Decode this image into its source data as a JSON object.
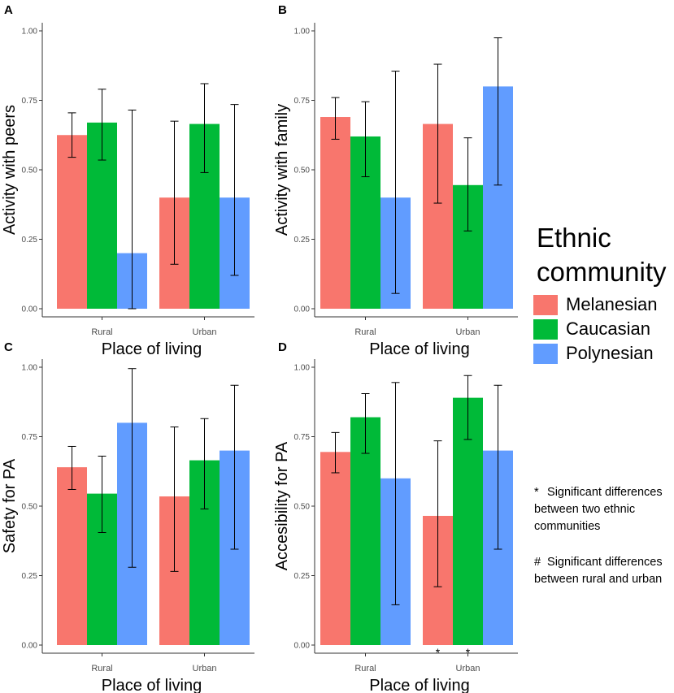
{
  "series_colors": {
    "Melanesian": "#F8766D",
    "Caucasian": "#00BA38",
    "Polynesian": "#619CFF"
  },
  "chart_data": [
    {
      "panel": "A",
      "type": "bar",
      "categories": [
        "Rural",
        "Urban"
      ],
      "series": [
        {
          "name": "Melanesian",
          "values": [
            0.625,
            0.4
          ],
          "err_low": [
            0.545,
            0.16
          ],
          "err_high": [
            0.705,
            0.675
          ]
        },
        {
          "name": "Caucasian",
          "values": [
            0.67,
            0.665
          ],
          "err_low": [
            0.535,
            0.49
          ],
          "err_high": [
            0.79,
            0.81
          ]
        },
        {
          "name": "Polynesian",
          "values": [
            0.2,
            0.4
          ],
          "err_low": [
            0.0,
            0.12
          ],
          "err_high": [
            0.715,
            0.735
          ]
        }
      ],
      "xlabel": "Place of living",
      "ylabel": "Activity with peers",
      "ylim": [
        0,
        1
      ],
      "yticks": [
        "0.00",
        "0.25",
        "0.50",
        "0.75",
        "1.00"
      ],
      "markers": []
    },
    {
      "panel": "B",
      "type": "bar",
      "categories": [
        "Rural",
        "Urban"
      ],
      "series": [
        {
          "name": "Melanesian",
          "values": [
            0.69,
            0.665
          ],
          "err_low": [
            0.61,
            0.38
          ],
          "err_high": [
            0.76,
            0.88
          ]
        },
        {
          "name": "Caucasian",
          "values": [
            0.62,
            0.445
          ],
          "err_low": [
            0.475,
            0.28
          ],
          "err_high": [
            0.745,
            0.615
          ]
        },
        {
          "name": "Polynesian",
          "values": [
            0.4,
            0.8
          ],
          "err_low": [
            0.055,
            0.445
          ],
          "err_high": [
            0.855,
            0.975
          ]
        }
      ],
      "xlabel": "Place of living",
      "ylabel": "Activity with family",
      "ylim": [
        0,
        1
      ],
      "yticks": [
        "0.00",
        "0.25",
        "0.50",
        "0.75",
        "1.00"
      ],
      "markers": []
    },
    {
      "panel": "C",
      "type": "bar",
      "categories": [
        "Rural",
        "Urban"
      ],
      "series": [
        {
          "name": "Melanesian",
          "values": [
            0.64,
            0.535
          ],
          "err_low": [
            0.56,
            0.265
          ],
          "err_high": [
            0.715,
            0.785
          ]
        },
        {
          "name": "Caucasian",
          "values": [
            0.545,
            0.665
          ],
          "err_low": [
            0.405,
            0.49
          ],
          "err_high": [
            0.68,
            0.815
          ]
        },
        {
          "name": "Polynesian",
          "values": [
            0.8,
            0.7
          ],
          "err_low": [
            0.28,
            0.345
          ],
          "err_high": [
            0.995,
            0.935
          ]
        }
      ],
      "xlabel": "Place of living",
      "ylabel": "Safety for PA",
      "ylim": [
        0,
        1
      ],
      "yticks": [
        "0.00",
        "0.25",
        "0.50",
        "0.75",
        "1.00"
      ],
      "markers": []
    },
    {
      "panel": "D",
      "type": "bar",
      "categories": [
        "Rural",
        "Urban"
      ],
      "series": [
        {
          "name": "Melanesian",
          "values": [
            0.695,
            0.465
          ],
          "err_low": [
            0.62,
            0.21
          ],
          "err_high": [
            0.765,
            0.735
          ]
        },
        {
          "name": "Caucasian",
          "values": [
            0.82,
            0.89
          ],
          "err_low": [
            0.69,
            0.74
          ],
          "err_high": [
            0.905,
            0.97
          ]
        },
        {
          "name": "Polynesian",
          "values": [
            0.6,
            0.7
          ],
          "err_low": [
            0.145,
            0.345
          ],
          "err_high": [
            0.945,
            0.935
          ]
        }
      ],
      "xlabel": "Place of living",
      "ylabel": "Accesibility for PA",
      "ylim": [
        0,
        1
      ],
      "yticks": [
        "0.00",
        "0.25",
        "0.50",
        "0.75",
        "1.00"
      ],
      "markers": [
        {
          "category": "Urban",
          "series": "Melanesian",
          "symbol": "*"
        },
        {
          "category": "Urban",
          "series": "Caucasian",
          "symbol": "*"
        }
      ]
    }
  ],
  "legend": {
    "title": "Ethnic community",
    "items": [
      {
        "label": "Melanesian",
        "color": "#F8766D"
      },
      {
        "label": "Caucasian",
        "color": "#00BA38"
      },
      {
        "label": "Polynesian",
        "color": "#619CFF"
      }
    ]
  },
  "notes": [
    {
      "symbol": "*",
      "text": "Significant differences between two ethnic communities"
    },
    {
      "symbol": "#",
      "text": "Significant differences between rural and urban"
    }
  ]
}
